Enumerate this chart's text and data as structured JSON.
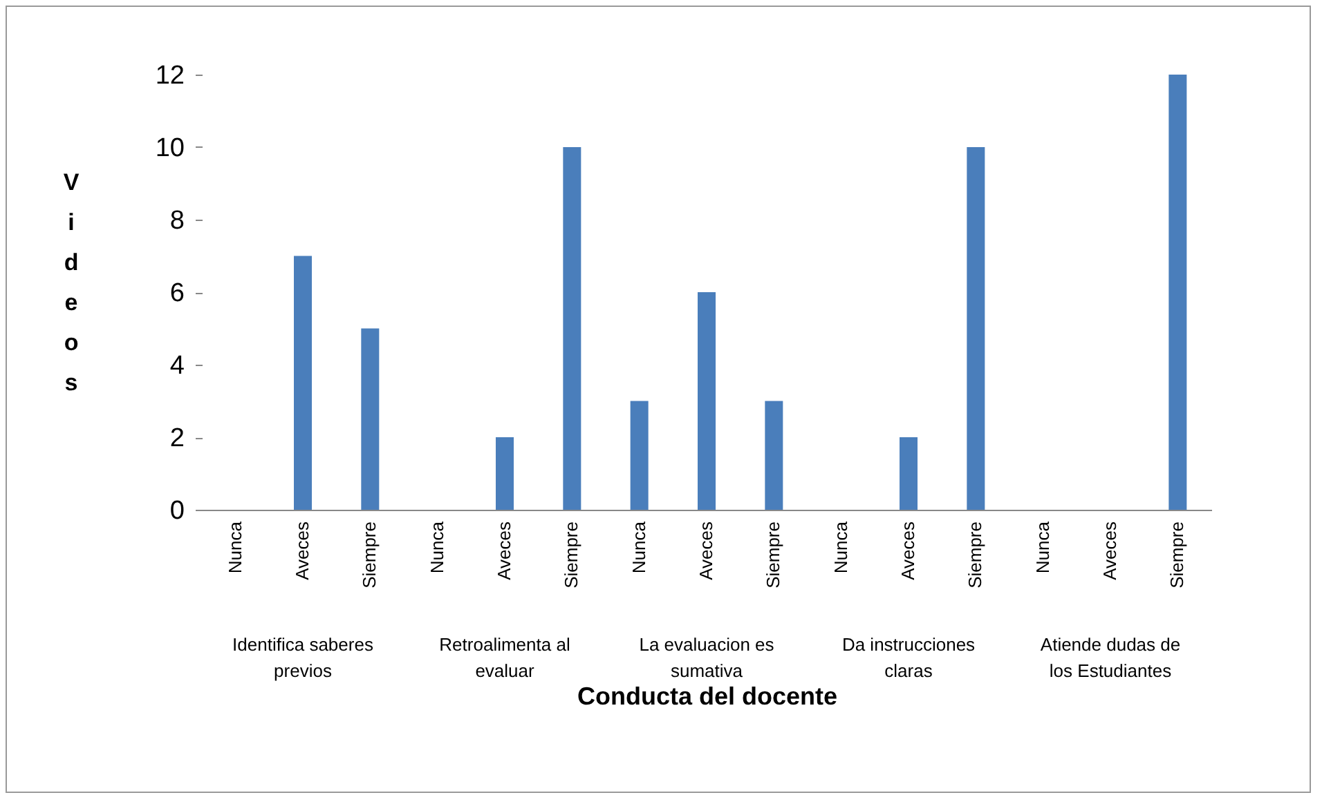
{
  "chart_data": {
    "type": "bar",
    "xlabel": "Conducta del docente",
    "ylabel": "Videos",
    "categories": [
      "Nunca",
      "Aveces",
      "Siempre",
      "Nunca",
      "Aveces",
      "Siempre",
      "Nunca",
      "Aveces",
      "Siempre",
      "Nunca",
      "Aveces",
      "Siempre",
      "Nunca",
      "Aveces",
      "Siempre"
    ],
    "values": [
      0,
      7,
      5,
      0,
      2,
      10,
      3,
      6,
      3,
      0,
      2,
      10,
      0,
      0,
      12
    ],
    "color": "#4a7ebb",
    "ylim": [
      0,
      12
    ],
    "yticks": [
      0,
      2,
      4,
      6,
      8,
      10,
      12
    ],
    "grid": false,
    "annotations": [
      "Identifica saberes previos",
      "Retroalimenta al evaluar",
      "La evaluacion es sumativa",
      "Da instrucciones claras",
      "Atiende dudas de los Estudiantes"
    ]
  }
}
